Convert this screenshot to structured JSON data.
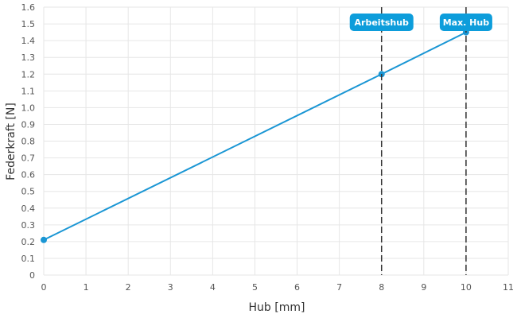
{
  "chart_data": {
    "type": "line",
    "xlabel": "Hub [mm]",
    "ylabel": "Federkraft [N]",
    "xlim": [
      0,
      11
    ],
    "ylim": [
      0,
      1.6
    ],
    "x_ticks": [
      "0",
      "1",
      "2",
      "3",
      "4",
      "5",
      "6",
      "7",
      "8",
      "9",
      "10",
      "11"
    ],
    "y_ticks": [
      "0",
      "0.1",
      "0.2",
      "0.3",
      "0.4",
      "0.5",
      "0.6",
      "0.7",
      "0.8",
      "0.9",
      "1.0",
      "1.1",
      "1.2",
      "1.3",
      "1.4",
      "1.5",
      "1.6"
    ],
    "grid": true,
    "series": [
      {
        "color": "#1a96d4",
        "points": [
          {
            "x": 0,
            "y": 0.21
          },
          {
            "x": 8,
            "y": 1.2
          },
          {
            "x": 10,
            "y": 1.45
          }
        ]
      }
    ],
    "markers": [
      {
        "x": 8,
        "label": "Arbeitshub"
      },
      {
        "x": 10,
        "label": "Max. Hub"
      }
    ],
    "colors": {
      "line": "#1a96d4",
      "badge": "#0d9ddb",
      "grid": "#e6e6e6",
      "marker_line": "#333333"
    }
  }
}
